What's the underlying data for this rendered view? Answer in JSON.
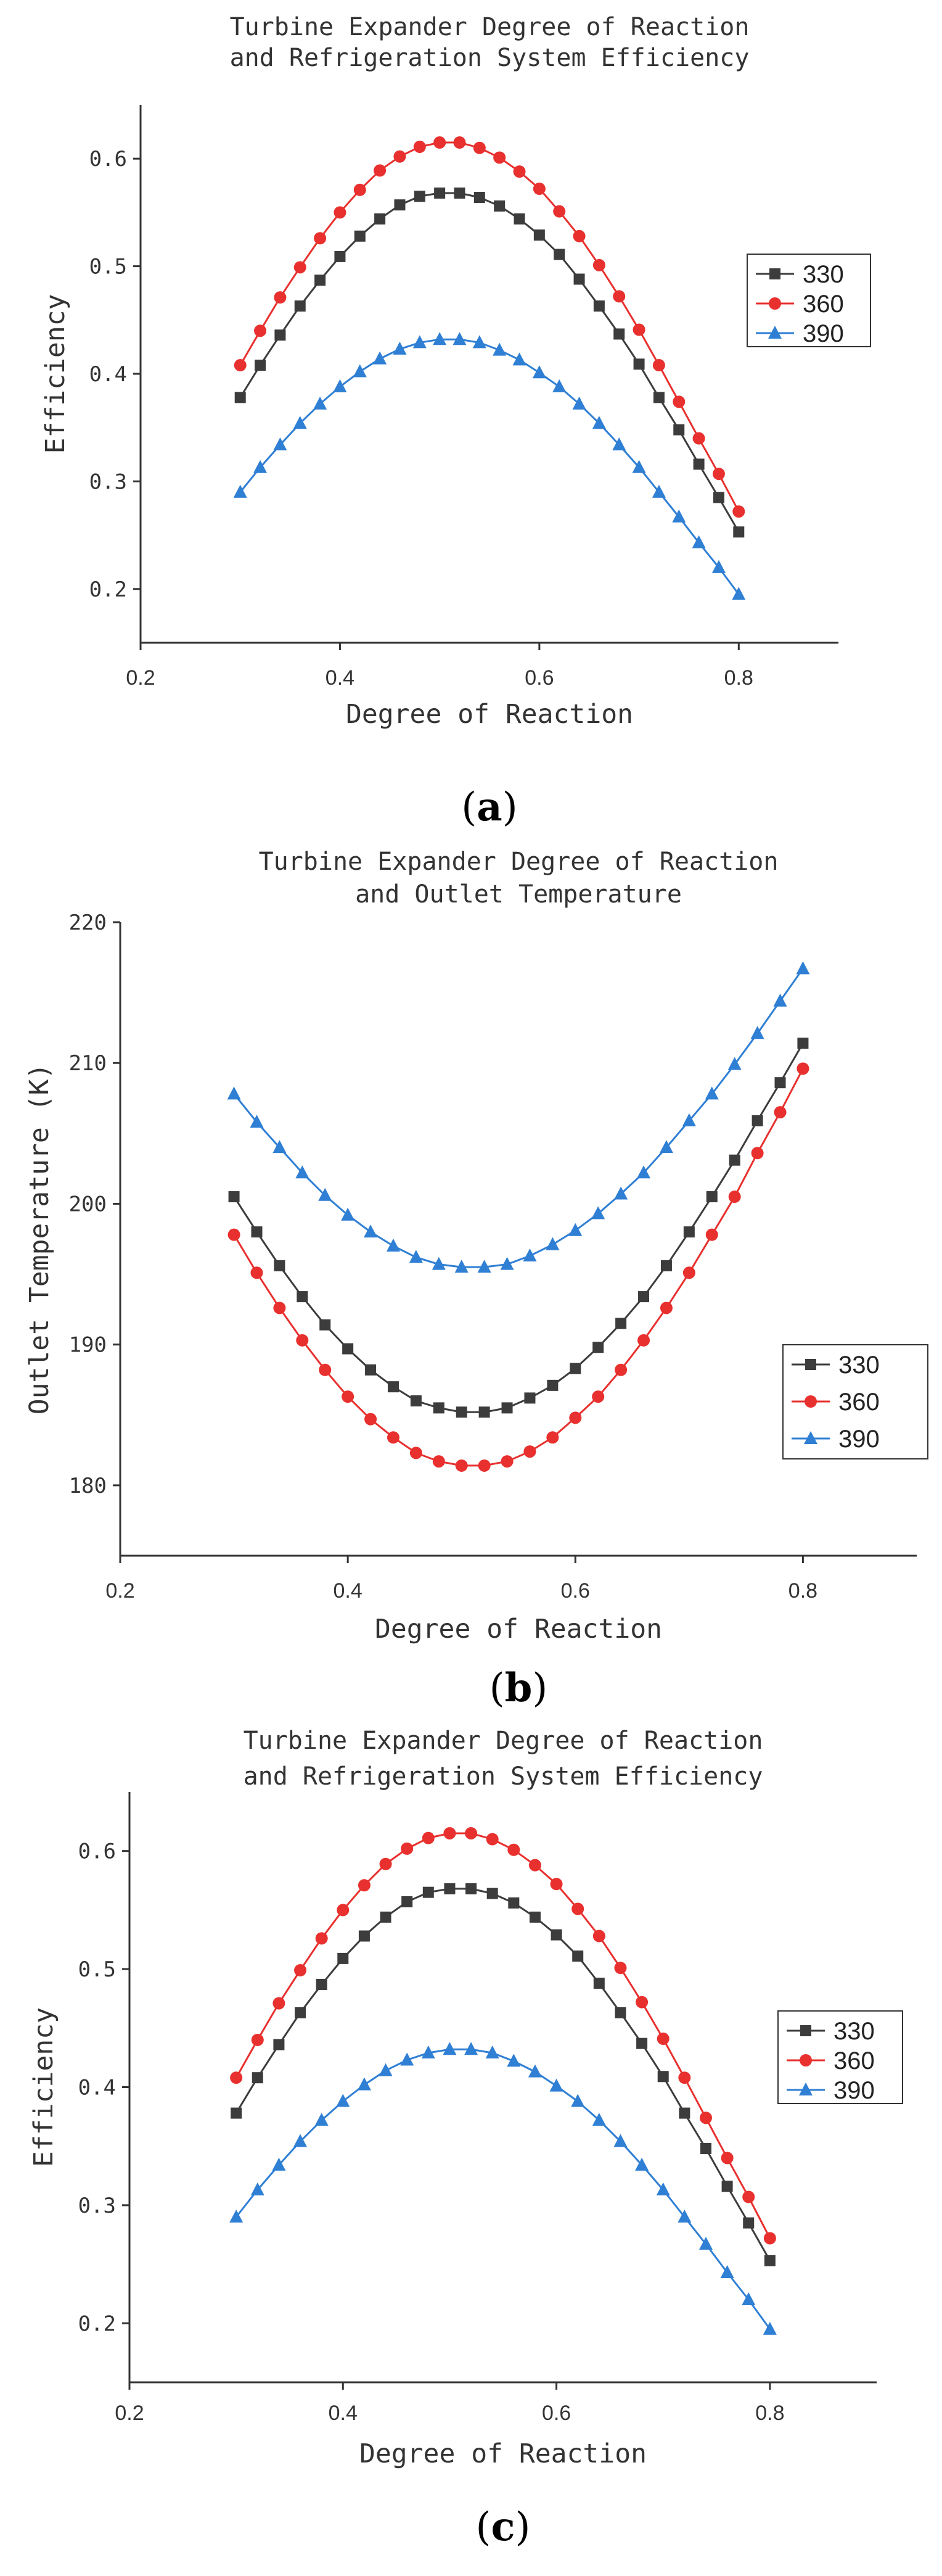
{
  "colors": {
    "s330": "#3c3c3c",
    "s360": "#e8302e",
    "s390": "#2f7fd4"
  },
  "chart_data": [
    {
      "type": "line",
      "panel": "a",
      "caption_letter": "a",
      "title": [
        "Turbine Expander  Degree of Reaction",
        "and Refrigeration System Efficiency"
      ],
      "xlabel": "Degree of Reaction",
      "ylabel": "Efficiency",
      "xlim": [
        0.2,
        0.9
      ],
      "ylim": [
        0.15,
        0.65
      ],
      "xticks": [
        0.2,
        0.4,
        0.6,
        0.8
      ],
      "xtick_labels": [
        "0.2",
        "0.4",
        "0.6",
        "0.8"
      ],
      "yticks": [
        0.2,
        0.3,
        0.4,
        0.5,
        0.6
      ],
      "ytick_labels": [
        "0.2",
        "0.3",
        "0.4",
        "0.5",
        "0.6"
      ],
      "legend_position": "right",
      "x": [
        0.3,
        0.32,
        0.34,
        0.36,
        0.38,
        0.4,
        0.42,
        0.44,
        0.46,
        0.48,
        0.5,
        0.52,
        0.54,
        0.56,
        0.58,
        0.6,
        0.62,
        0.64,
        0.66,
        0.68,
        0.7,
        0.72,
        0.74,
        0.76,
        0.78,
        0.8
      ],
      "series": [
        {
          "name": "330",
          "marker": "square",
          "color": "#3c3c3c",
          "values": [
            0.378,
            0.408,
            0.436,
            0.463,
            0.487,
            0.509,
            0.528,
            0.544,
            0.557,
            0.565,
            0.568,
            0.568,
            0.564,
            0.556,
            0.544,
            0.529,
            0.511,
            0.488,
            0.463,
            0.437,
            0.409,
            0.378,
            0.348,
            0.316,
            0.285,
            0.253
          ]
        },
        {
          "name": "360",
          "marker": "circle",
          "color": "#e8302e",
          "values": [
            0.408,
            0.44,
            0.471,
            0.499,
            0.526,
            0.55,
            0.571,
            0.589,
            0.602,
            0.611,
            0.615,
            0.615,
            0.61,
            0.601,
            0.588,
            0.572,
            0.551,
            0.528,
            0.501,
            0.472,
            0.441,
            0.408,
            0.374,
            0.34,
            0.307,
            0.272
          ]
        },
        {
          "name": "390",
          "marker": "triangle",
          "color": "#2f7fd4",
          "values": [
            0.29,
            0.313,
            0.334,
            0.354,
            0.372,
            0.388,
            0.402,
            0.414,
            0.423,
            0.429,
            0.432,
            0.432,
            0.429,
            0.422,
            0.413,
            0.401,
            0.388,
            0.372,
            0.354,
            0.334,
            0.313,
            0.29,
            0.267,
            0.243,
            0.22,
            0.195
          ]
        }
      ]
    },
    {
      "type": "line",
      "panel": "b",
      "caption_letter": "b",
      "title": [
        "Turbine Expander Degree of Reaction",
        "and Outlet Temperature"
      ],
      "xlabel": "Degree of Reaction",
      "ylabel": "Outlet Temperature (K)",
      "xlim": [
        0.2,
        0.9
      ],
      "ylim": [
        175,
        220
      ],
      "xticks": [
        0.2,
        0.4,
        0.6,
        0.8
      ],
      "xtick_labels": [
        "0.2",
        "0.4",
        "0.6",
        "0.8"
      ],
      "yticks": [
        180,
        190,
        200,
        210,
        220
      ],
      "ytick_labels": [
        "180",
        "190",
        "200",
        "210",
        "220"
      ],
      "legend_position": "bottom-right",
      "x": [
        0.3,
        0.32,
        0.34,
        0.36,
        0.38,
        0.4,
        0.42,
        0.44,
        0.46,
        0.48,
        0.5,
        0.52,
        0.54,
        0.56,
        0.58,
        0.6,
        0.62,
        0.64,
        0.66,
        0.68,
        0.7,
        0.72,
        0.74,
        0.76,
        0.78,
        0.8
      ],
      "series": [
        {
          "name": "330",
          "marker": "square",
          "color": "#3c3c3c",
          "values": [
            200.5,
            198.0,
            195.6,
            193.4,
            191.4,
            189.7,
            188.2,
            187.0,
            186.0,
            185.5,
            185.2,
            185.2,
            185.5,
            186.2,
            187.1,
            188.3,
            189.8,
            191.5,
            193.4,
            195.6,
            198.0,
            200.5,
            203.1,
            205.9,
            208.6,
            211.4
          ]
        },
        {
          "name": "360",
          "marker": "circle",
          "color": "#e8302e",
          "values": [
            197.8,
            195.1,
            192.6,
            190.3,
            188.2,
            186.3,
            184.7,
            183.4,
            182.3,
            181.7,
            181.4,
            181.4,
            181.7,
            182.4,
            183.4,
            184.8,
            186.3,
            188.2,
            190.3,
            192.6,
            195.1,
            197.8,
            200.5,
            203.6,
            206.5,
            209.6
          ]
        },
        {
          "name": "390",
          "marker": "triangle",
          "color": "#2f7fd4",
          "values": [
            207.8,
            205.8,
            204.0,
            202.2,
            200.6,
            199.2,
            198.0,
            197.0,
            196.2,
            195.7,
            195.5,
            195.5,
            195.7,
            196.3,
            197.1,
            198.1,
            199.3,
            200.7,
            202.2,
            204.0,
            205.9,
            207.8,
            209.9,
            212.1,
            214.4,
            216.7
          ]
        }
      ]
    },
    {
      "type": "line",
      "panel": "c",
      "caption_letter": "c",
      "title": [
        "Turbine Expander  Degree of Reaction",
        "and Refrigeration System Efficiency"
      ],
      "xlabel": "Degree of Reaction",
      "ylabel": "Efficiency",
      "xlim": [
        0.2,
        0.9
      ],
      "ylim": [
        0.15,
        0.65
      ],
      "xticks": [
        0.2,
        0.4,
        0.6,
        0.8
      ],
      "xtick_labels": [
        "0.2",
        "0.4",
        "0.6",
        "0.8"
      ],
      "yticks": [
        0.2,
        0.3,
        0.4,
        0.5,
        0.6
      ],
      "ytick_labels": [
        "0.2",
        "0.3",
        "0.4",
        "0.5",
        "0.6"
      ],
      "legend_position": "right",
      "x": [
        0.3,
        0.32,
        0.34,
        0.36,
        0.38,
        0.4,
        0.42,
        0.44,
        0.46,
        0.48,
        0.5,
        0.52,
        0.54,
        0.56,
        0.58,
        0.6,
        0.62,
        0.64,
        0.66,
        0.68,
        0.7,
        0.72,
        0.74,
        0.76,
        0.78,
        0.8
      ],
      "series": [
        {
          "name": "330",
          "marker": "square",
          "color": "#3c3c3c",
          "values": [
            0.378,
            0.408,
            0.436,
            0.463,
            0.487,
            0.509,
            0.528,
            0.544,
            0.557,
            0.565,
            0.568,
            0.568,
            0.564,
            0.556,
            0.544,
            0.529,
            0.511,
            0.488,
            0.463,
            0.437,
            0.409,
            0.378,
            0.348,
            0.316,
            0.285,
            0.253
          ]
        },
        {
          "name": "360",
          "marker": "circle",
          "color": "#e8302e",
          "values": [
            0.408,
            0.44,
            0.471,
            0.499,
            0.526,
            0.55,
            0.571,
            0.589,
            0.602,
            0.611,
            0.615,
            0.615,
            0.61,
            0.601,
            0.588,
            0.572,
            0.551,
            0.528,
            0.501,
            0.472,
            0.441,
            0.408,
            0.374,
            0.34,
            0.307,
            0.272
          ]
        },
        {
          "name": "390",
          "marker": "triangle",
          "color": "#2f7fd4",
          "values": [
            0.29,
            0.313,
            0.334,
            0.354,
            0.372,
            0.388,
            0.402,
            0.414,
            0.423,
            0.429,
            0.432,
            0.432,
            0.429,
            0.422,
            0.413,
            0.401,
            0.388,
            0.372,
            0.354,
            0.334,
            0.313,
            0.29,
            0.267,
            0.243,
            0.22,
            0.195
          ]
        }
      ]
    }
  ]
}
